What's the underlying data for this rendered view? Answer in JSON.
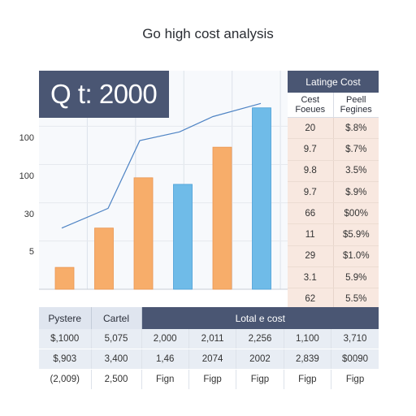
{
  "title": "Go high cost analysis",
  "banner": "Q t: 2000",
  "chart_data": {
    "type": "bar",
    "title": "Go high cost analysis",
    "y_tick_labels": [
      "100",
      "100",
      "30",
      "5"
    ],
    "bars": [
      {
        "value": 10,
        "color": "#f7ad6a"
      },
      {
        "value": 28,
        "color": "#f7ad6a"
      },
      {
        "value": 51,
        "color": "#f7ad6a"
      },
      {
        "value": 48,
        "color": "#6fbbe8"
      },
      {
        "value": 65,
        "color": "#f7ad6a"
      },
      {
        "value": 83,
        "color": "#6fbbe8"
      }
    ],
    "line": {
      "color": "#4f84c4",
      "values": [
        28,
        37,
        68,
        72,
        79,
        85
      ]
    },
    "ylim": [
      0,
      100
    ],
    "grid": true
  },
  "side_table": {
    "header": "Latinge Cost",
    "col1": "Cest Foeues",
    "col2": "Peell Fegines",
    "rows": [
      [
        "20",
        "$.8%"
      ],
      [
        "9.7",
        "$.7%"
      ],
      [
        "9.8",
        "3.5%"
      ],
      [
        "9.7",
        "$.9%"
      ],
      [
        "66",
        "$00%"
      ],
      [
        "11",
        "$5.9%"
      ],
      [
        "29",
        "$1.0%"
      ],
      [
        "3.1",
        "5.9%"
      ],
      [
        "62",
        "5.5%"
      ]
    ]
  },
  "bottom_table": {
    "headers": [
      "Pystere",
      "Cartel",
      "Lotal e cost"
    ],
    "rows": [
      [
        "$,1000",
        "5,075",
        "2,000",
        "2,011",
        "2,256",
        "1,100",
        "3,710"
      ],
      [
        "$,903",
        "3,400",
        "1,46",
        "2074",
        "2002",
        "2,839",
        "$0090"
      ],
      [
        "(2,009)",
        "2,500",
        "Fign",
        "Figp",
        "Figp",
        "Figp",
        "Figp"
      ]
    ]
  },
  "colors": {
    "header": "#4a5673",
    "bar_orange": "#f7ad6a",
    "bar_blue": "#6fbbe8",
    "line": "#4f84c4",
    "side_row": "#f8e8e0"
  }
}
